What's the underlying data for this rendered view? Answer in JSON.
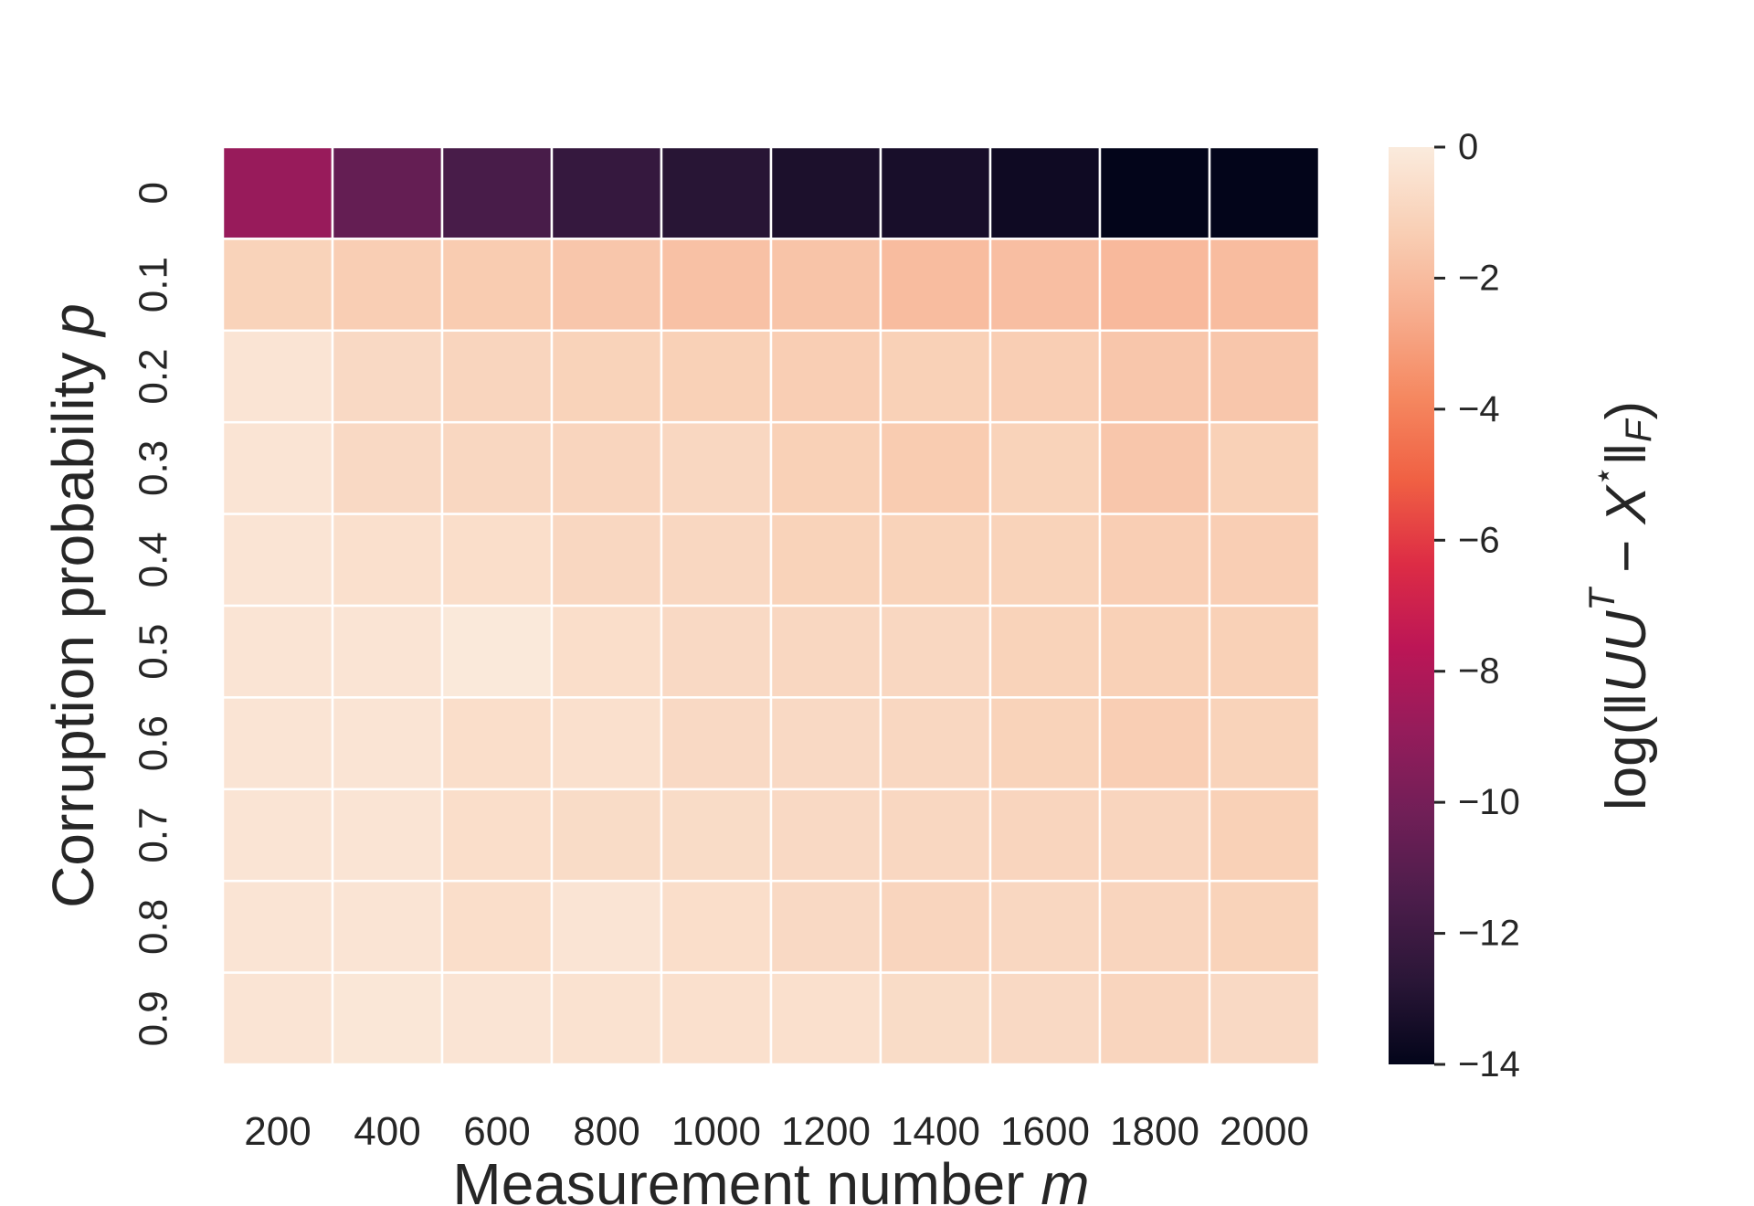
{
  "chart_data": {
    "type": "heatmap",
    "title": "",
    "xlabel": "Measurement number",
    "xlabel_var": "m",
    "ylabel": "Corruption probability",
    "ylabel_var": "p",
    "x": [
      "200",
      "400",
      "600",
      "800",
      "1000",
      "1200",
      "1400",
      "1600",
      "1800",
      "2000"
    ],
    "y": [
      "0",
      "0.1",
      "0.2",
      "0.3",
      "0.4",
      "0.5",
      "0.6",
      "0.7",
      "0.8",
      "0.9"
    ],
    "values": [
      [
        -8.8,
        -10.6,
        -11.6,
        -12.3,
        -12.8,
        -13.2,
        -13.3,
        -13.6,
        -14.0,
        -14.0
      ],
      [
        -1.1,
        -1.3,
        -1.4,
        -1.6,
        -1.8,
        -1.7,
        -2.0,
        -1.9,
        -2.1,
        -2.0
      ],
      [
        -0.3,
        -0.8,
        -1.0,
        -1.1,
        -1.2,
        -1.3,
        -1.2,
        -1.3,
        -1.6,
        -1.6
      ],
      [
        -0.3,
        -0.8,
        -0.9,
        -1.0,
        -0.9,
        -1.2,
        -1.4,
        -1.1,
        -1.6,
        -1.2
      ],
      [
        -0.3,
        -0.5,
        -0.6,
        -0.9,
        -0.9,
        -1.1,
        -1.1,
        -1.1,
        -1.3,
        -1.3
      ],
      [
        -0.3,
        -0.3,
        -0.1,
        -0.6,
        -0.8,
        -0.9,
        -0.9,
        -1.1,
        -1.2,
        -1.2
      ],
      [
        -0.3,
        -0.3,
        -0.6,
        -0.5,
        -0.8,
        -0.8,
        -0.9,
        -1.1,
        -1.3,
        -1.1
      ],
      [
        -0.3,
        -0.3,
        -0.6,
        -0.7,
        -0.7,
        -0.8,
        -0.9,
        -1.0,
        -1.0,
        -1.2
      ],
      [
        -0.3,
        -0.3,
        -0.6,
        -0.3,
        -0.6,
        -0.8,
        -1.0,
        -0.9,
        -1.0,
        -1.1
      ],
      [
        -0.3,
        -0.2,
        -0.3,
        -0.4,
        -0.5,
        -0.5,
        -0.7,
        -0.8,
        -1.0,
        -0.8
      ]
    ],
    "colorbar": {
      "label": "log(‖UU^T − X^⋆‖_F)",
      "vmin": -14,
      "vmax": 0,
      "ticks": [
        0,
        -2,
        -4,
        -6,
        -8,
        -10,
        -12,
        -14
      ],
      "tick_labels": [
        "0",
        "−2",
        "−4",
        "−6",
        "−8",
        "−10",
        "−12",
        "−14"
      ],
      "colormap": "rocket",
      "stops": [
        "#03051a",
        "#2a1637",
        "#4c1d4b",
        "#701f57",
        "#951c5b",
        "#bc1656",
        "#dd2c45",
        "#f06043",
        "#f58860",
        "#f7ad8e",
        "#f9cfb5",
        "#faebdd"
      ]
    },
    "grid": true,
    "legend": "colorbar-right"
  }
}
